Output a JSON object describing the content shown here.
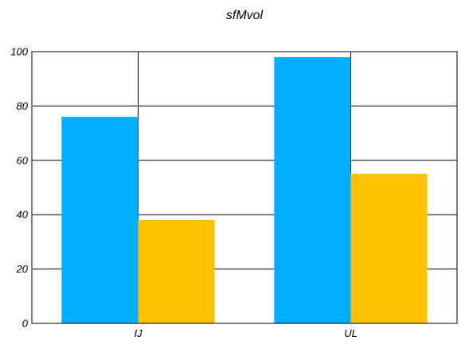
{
  "chart_data": {
    "type": "bar",
    "title": "sfMvol",
    "categories": [
      "IJ",
      "UL"
    ],
    "series": [
      {
        "values": [
          76,
          98
        ],
        "color": "#00aeff"
      },
      {
        "values": [
          38,
          55
        ],
        "color": "#ffc000"
      }
    ],
    "ylim": [
      0,
      100
    ],
    "yticks": [
      0,
      20,
      40,
      60,
      80,
      100
    ],
    "grid": true,
    "legend": "none"
  }
}
